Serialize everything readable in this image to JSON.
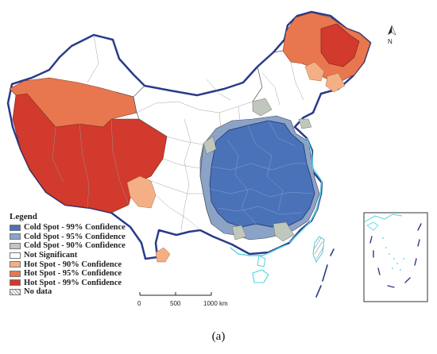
{
  "legend": {
    "title": "Legend",
    "items": [
      {
        "label": "Cold Spot - 99% Confidence",
        "color": "#4a72b8"
      },
      {
        "label": "Cold Spot - 95% Confidence",
        "color": "#8ba3c7"
      },
      {
        "label": "Cold Spot - 90% Confidence",
        "color": "#c0c7bc"
      },
      {
        "label": "Not Significant",
        "color": "#ffffff"
      },
      {
        "label": "Hot Spot - 90% Confidence",
        "color": "#f4b084"
      },
      {
        "label": "Hot Spot - 95% Confidence",
        "color": "#e8774f"
      },
      {
        "label": "Hot Spot - 99% Confidence",
        "color": "#d13a2c"
      },
      {
        "label": "No data",
        "color": "hatch"
      }
    ]
  },
  "scale_bar": {
    "labels": [
      "0",
      "500",
      "1000 km"
    ]
  },
  "north_arrow": {
    "label": "N"
  },
  "caption": "(a)",
  "colors": {
    "cold99": "#4a72b8",
    "cold95": "#8ba3c7",
    "cold90": "#c0c7bc",
    "hot90": "#f4b084",
    "hot95": "#e8774f",
    "hot99": "#d13a2c",
    "boundary": "#2a3a8a",
    "coast": "#4fd4e0",
    "internal": "#8a8a8a"
  }
}
